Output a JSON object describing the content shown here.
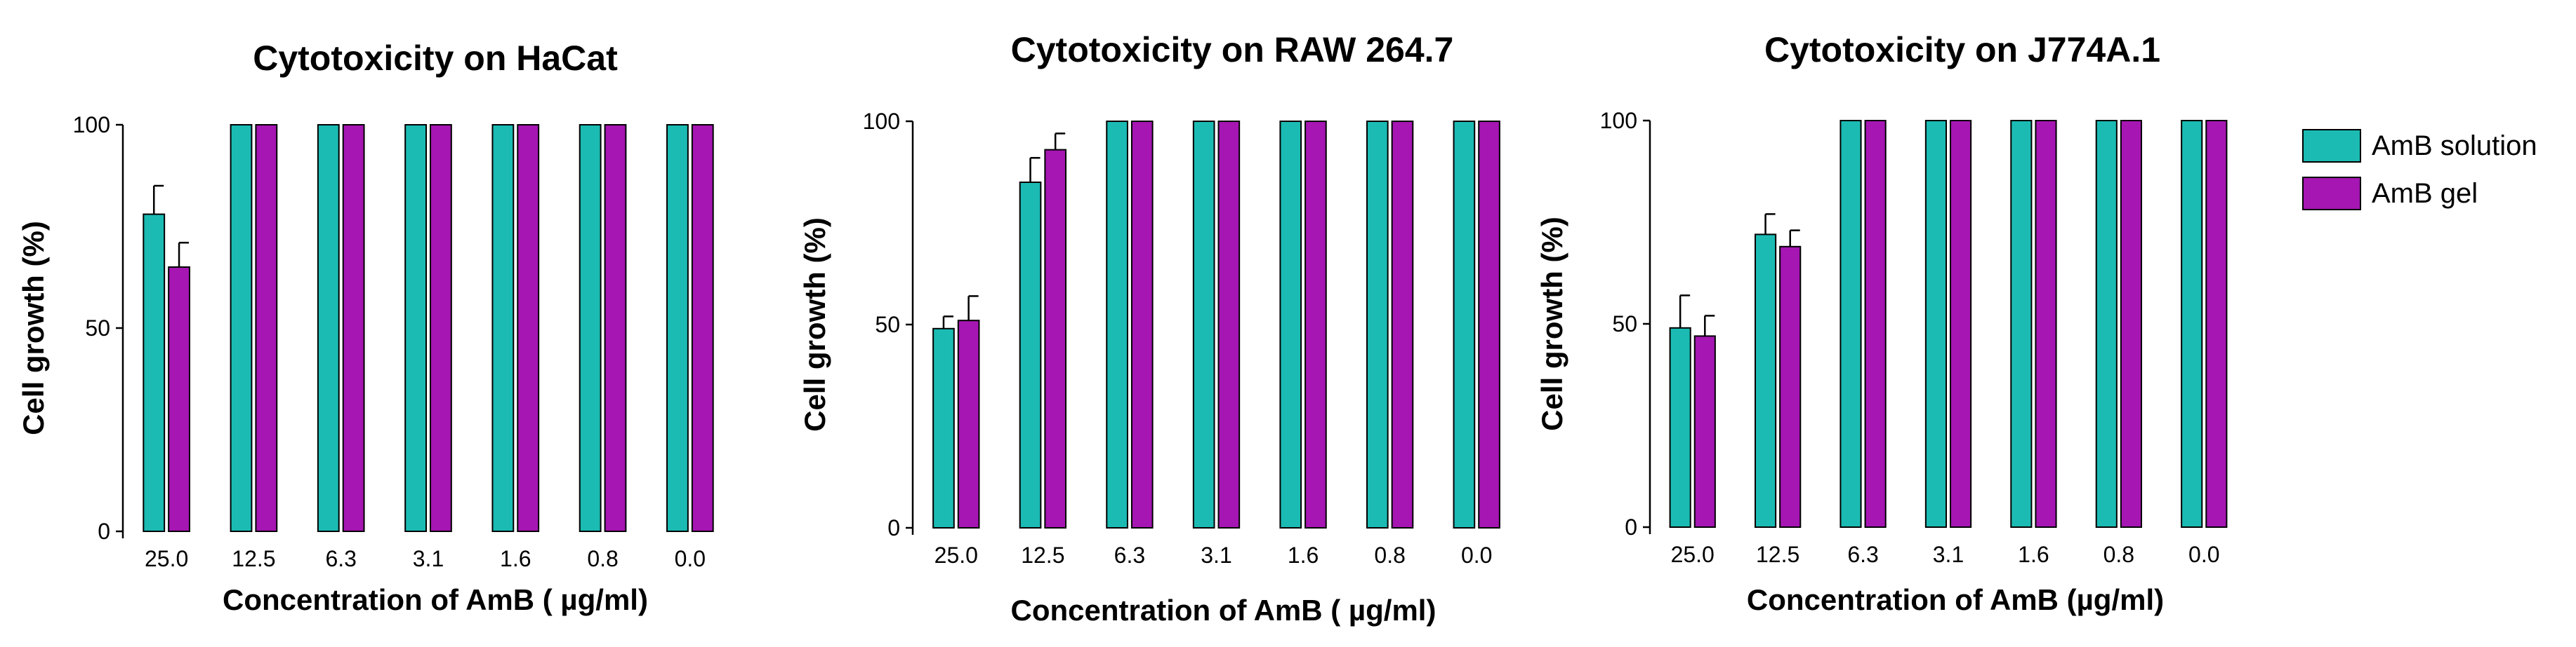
{
  "chart_data": [
    {
      "type": "bar",
      "title": "Cytotoxicity on HaCat",
      "xlabel": "Concentration of AmB ( µg/ml)",
      "ylabel": "Cell growth (%)",
      "ylim": [
        0,
        100
      ],
      "yticks": [
        0,
        50,
        100
      ],
      "categories": [
        "25.0",
        "12.5",
        "6.3",
        "3.1",
        "1.6",
        "0.8",
        "0.0"
      ],
      "series": [
        {
          "name": "AmB solution",
          "values": [
            78,
            100,
            100,
            100,
            100,
            100,
            100
          ],
          "errors": [
            7,
            0,
            0,
            0,
            0,
            0,
            0
          ]
        },
        {
          "name": "AmB gel",
          "values": [
            65,
            100,
            100,
            100,
            100,
            100,
            100
          ],
          "errors": [
            6,
            0,
            0,
            0,
            0,
            0,
            0
          ]
        }
      ]
    },
    {
      "type": "bar",
      "title": "Cytotoxicity on RAW 264.7",
      "xlabel": "Concentration of AmB ( µg/ml)",
      "ylabel": "Cell growth (%)",
      "ylim": [
        0,
        100
      ],
      "yticks": [
        0,
        50,
        100
      ],
      "categories": [
        "25.0",
        "12.5",
        "6.3",
        "3.1",
        "1.6",
        "0.8",
        "0.0"
      ],
      "series": [
        {
          "name": "AmB solution",
          "values": [
            49,
            85,
            100,
            100,
            100,
            100,
            100
          ],
          "errors": [
            3,
            6,
            0,
            0,
            0,
            0,
            0
          ]
        },
        {
          "name": "AmB gel",
          "values": [
            51,
            93,
            100,
            100,
            100,
            100,
            100
          ],
          "errors": [
            6,
            4,
            0,
            0,
            0,
            0,
            0
          ]
        }
      ]
    },
    {
      "type": "bar",
      "title": "Cytotoxicity on J774A.1",
      "xlabel": "Concentration of AmB (µg/ml)",
      "ylabel": "Cell growth (%)",
      "ylim": [
        0,
        100
      ],
      "yticks": [
        0,
        50,
        100
      ],
      "categories": [
        "25.0",
        "12.5",
        "6.3",
        "3.1",
        "1.6",
        "0.8",
        "0.0"
      ],
      "series": [
        {
          "name": "AmB solution",
          "values": [
            49,
            72,
            100,
            100,
            100,
            100,
            100
          ],
          "errors": [
            8,
            5,
            0,
            0,
            0,
            0,
            0
          ]
        },
        {
          "name": "AmB gel",
          "values": [
            47,
            69,
            100,
            100,
            100,
            100,
            100
          ],
          "errors": [
            5,
            4,
            0,
            0,
            0,
            0,
            0
          ]
        }
      ]
    }
  ],
  "legend": {
    "items": [
      {
        "label": "AmB solution",
        "color": "#1BBBB3"
      },
      {
        "label": "AmB gel",
        "color": "#A516B2"
      }
    ]
  }
}
